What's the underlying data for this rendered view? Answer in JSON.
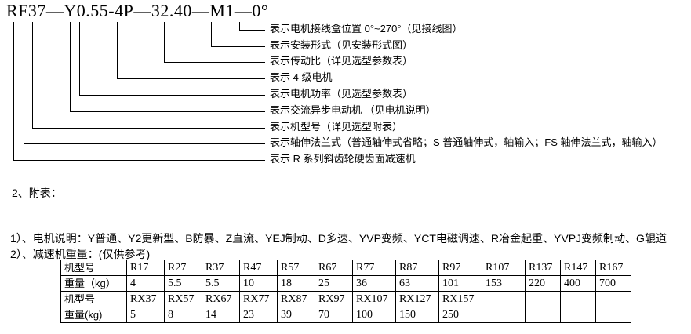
{
  "colors": {
    "text": "#000000",
    "background": "#ffffff"
  },
  "title": "RF37—Y0.55-4P—32.40—M1—0°",
  "diagram": {
    "callouts": [
      {
        "label": "表示电机接线盒位置 0°~270°（见接线图）"
      },
      {
        "label": "表示安装形式（见安装形式图）"
      },
      {
        "label": "表示传动比（详见选型参数表）"
      },
      {
        "label": "表示 4 级电机"
      },
      {
        "label": "表示电机功率（见选型参数表）"
      },
      {
        "label": "表示交流异步电动机 （见电机说明）"
      },
      {
        "label": "表示机型号（详见选型附表）"
      },
      {
        "label": "表示轴伸法兰式（普通轴伸式省略；S 普通轴伸式，轴输入；FS 轴伸法兰式，轴输入）"
      },
      {
        "label": "表示 R 系列斜齿轮硬齿面减速机"
      }
    ]
  },
  "appendix": {
    "heading": "2、附表：",
    "notes": [
      "1）、电机说明：Y普通、Y2更新型、B防暴、Z直流、YEJ制动、D多速、YVP变频、YCT电磁调速、R冶金起重、YVPJ变频制动、G辊道",
      "2）、减速机重量：(仅供参考)"
    ]
  },
  "weight_table": {
    "rows": [
      {
        "label": "机型号",
        "cells": [
          "R17",
          "R27",
          "R37",
          "R47",
          "R57",
          "R67",
          "R77",
          "R87",
          "R97",
          "R107",
          "R137",
          "R147",
          "R167"
        ]
      },
      {
        "label": "重量（kg）",
        "cells": [
          "4",
          "5.5",
          "5.5",
          "10",
          "18",
          "25",
          "36",
          "63",
          "101",
          "153",
          "220",
          "400",
          "700"
        ]
      },
      {
        "label": "机型号",
        "cells": [
          "RX37",
          "RX57",
          "RX67",
          "RX77",
          "RX87",
          "RX97",
          "RX107",
          "RX127",
          "RX157",
          "",
          "",
          "",
          ""
        ]
      },
      {
        "label": "重量(kg)",
        "cells": [
          "5",
          "8",
          "14",
          "23",
          "39",
          "70",
          "100",
          "150",
          "250",
          "",
          "",
          "",
          ""
        ]
      }
    ]
  }
}
